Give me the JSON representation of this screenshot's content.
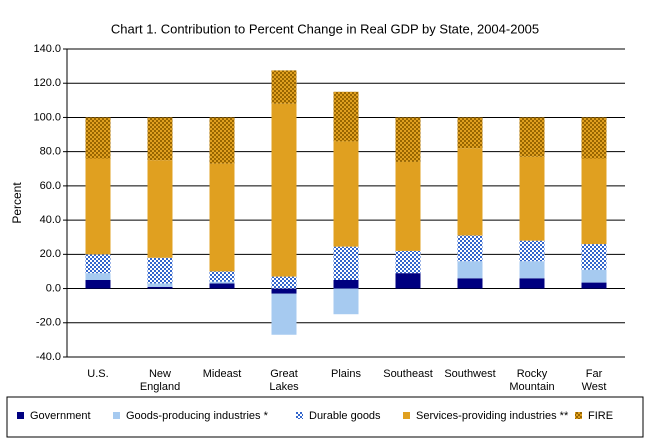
{
  "chart_data": {
    "type": "stacked-bar",
    "title": "Chart 1. Contribution to Percent Change in Real GDP by State, 2004-2005",
    "y_label": "Percent",
    "categories": [
      "U.S.",
      "New England",
      "Mideast",
      "Great Lakes",
      "Plains",
      "Southeast",
      "Southwest",
      "Rocky Mountain",
      "Far West"
    ],
    "series": [
      {
        "name": "Government",
        "color": "#000080",
        "values": [
          5,
          1,
          3,
          -3,
          5,
          9,
          6,
          6,
          3.5
        ]
      },
      {
        "name": "Goods-producing industries *",
        "color": "#a6caf0",
        "values": [
          4,
          2,
          1,
          -24,
          -15,
          0,
          10,
          10,
          7.5
        ]
      },
      {
        "name": "Durable goods",
        "color": "#3366cc",
        "hatch": true,
        "values": [
          11,
          15,
          6,
          7,
          19.5,
          13,
          15,
          12,
          15
        ]
      },
      {
        "name": "Services-providing industries **",
        "color": "#e0a020",
        "values": [
          56,
          57,
          63,
          101,
          61.5,
          52,
          51,
          49,
          50
        ]
      },
      {
        "name": "FIRE",
        "color": "#996600",
        "hatch": true,
        "values": [
          24,
          25,
          27,
          19.5,
          29,
          26,
          18,
          23,
          24
        ]
      }
    ],
    "ylim": [
      -40,
      140
    ],
    "yticks": [
      {
        "value": -40,
        "label": "-40.0"
      },
      {
        "value": -20,
        "label": "-20.0"
      },
      {
        "value": 0,
        "label": "0.0"
      },
      {
        "value": 20,
        "label": "20.0"
      },
      {
        "value": 40,
        "label": "40.0"
      },
      {
        "value": 60,
        "label": "60.0"
      },
      {
        "value": 80,
        "label": "80.0"
      },
      {
        "value": 100,
        "label": "100.0"
      },
      {
        "value": 120,
        "label": "120.0"
      },
      {
        "value": 140,
        "label": "140.0"
      }
    ],
    "grid": true
  }
}
